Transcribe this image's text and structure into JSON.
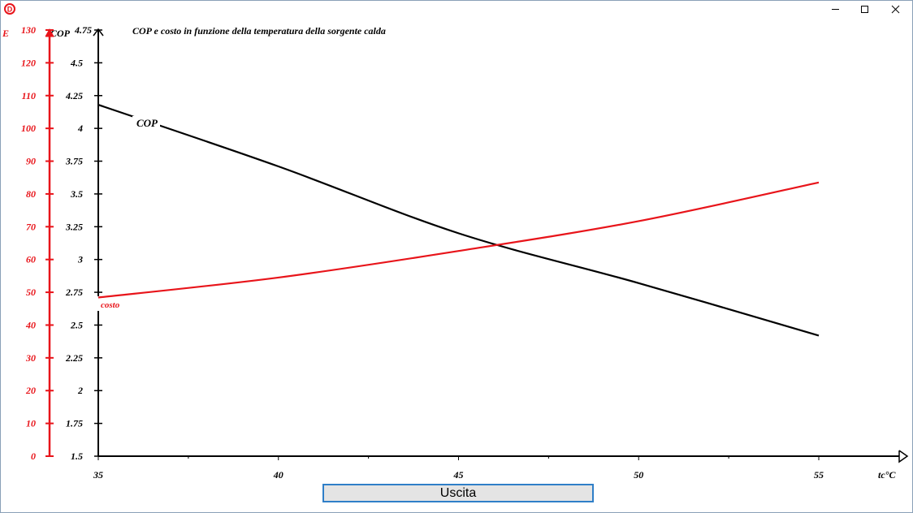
{
  "window": {
    "app_icon_letter": "D",
    "controls": {
      "minimize": "minimize-icon",
      "maximize": "maximize-icon",
      "close": "close-icon"
    }
  },
  "exit_button_label": "Uscita",
  "colors": {
    "cop": "#000000",
    "costo": "#e8141a",
    "frame": "#8aa0b8",
    "button_border": "#2f7fc8"
  },
  "chart_data": {
    "type": "line",
    "title": "COP  e costo in funzione della temperatura della sorgente calda",
    "xlabel": "tc°C",
    "ylabel_left": "COP",
    "ylabel_right": "E",
    "x_ticks": [
      "35",
      "40",
      "45",
      "50",
      "55"
    ],
    "xlim": [
      35,
      55
    ],
    "cop_axis": {
      "label": "COP",
      "ylim": [
        1.5,
        4.75
      ],
      "ticks": [
        "1.5",
        "1.75",
        "2",
        "2.25",
        "2.5",
        "2.75",
        "3",
        "3.25",
        "3.5",
        "3.75",
        "4",
        "4.25",
        "4.5",
        "4.75"
      ],
      "tick_values": [
        1.5,
        1.75,
        2,
        2.25,
        2.5,
        2.75,
        3,
        3.25,
        3.5,
        3.75,
        4,
        4.25,
        4.5,
        4.75
      ]
    },
    "e_axis": {
      "label": "E",
      "ylim": [
        0,
        130
      ],
      "ticks": [
        "0",
        "10",
        "20",
        "30",
        "40",
        "50",
        "60",
        "70",
        "80",
        "90",
        "100",
        "110",
        "120",
        "130"
      ],
      "tick_values": [
        0,
        10,
        20,
        30,
        40,
        50,
        60,
        70,
        80,
        90,
        100,
        110,
        120,
        130
      ]
    },
    "grid": false,
    "series": [
      {
        "name": "COP",
        "axis": "cop",
        "color": "#000000",
        "x": [
          35,
          40,
          45,
          50,
          55
        ],
        "y": [
          4.18,
          3.71,
          3.2,
          2.82,
          2.42
        ]
      },
      {
        "name": "costo",
        "axis": "e",
        "color": "#e8141a",
        "x": [
          35,
          40,
          45,
          50,
          55
        ],
        "y": [
          48.4,
          54.5,
          62.6,
          71.7,
          83.5
        ]
      }
    ]
  }
}
